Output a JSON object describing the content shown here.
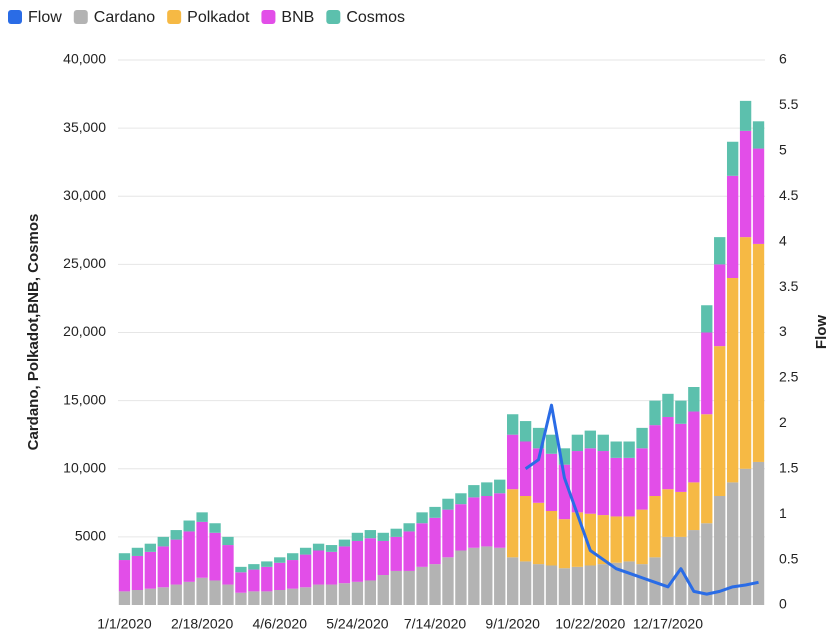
{
  "chart_data": {
    "type": "bar",
    "stacked": true,
    "categories": [
      "1/1/2020",
      null,
      null,
      null,
      null,
      null,
      "2/18/2020",
      null,
      null,
      null,
      null,
      null,
      "4/6/2020",
      null,
      null,
      null,
      null,
      null,
      "5/24/2020",
      null,
      null,
      null,
      null,
      null,
      "7/14/2020",
      null,
      null,
      null,
      null,
      null,
      "9/1/2020",
      null,
      null,
      null,
      null,
      null,
      "10/22/2020",
      null,
      null,
      null,
      null,
      null,
      "12/17/2020",
      null,
      null,
      null,
      null,
      null,
      null,
      null
    ],
    "series": [
      {
        "name": "Flow",
        "color": "#2a6ce6",
        "type": "line",
        "axis": "y2",
        "values": [
          null,
          null,
          null,
          null,
          null,
          null,
          null,
          null,
          null,
          null,
          null,
          null,
          null,
          null,
          null,
          null,
          null,
          null,
          null,
          null,
          null,
          null,
          null,
          null,
          null,
          null,
          null,
          null,
          null,
          null,
          null,
          1.5,
          1.6,
          2.2,
          1.4,
          1.0,
          0.6,
          0.5,
          0.4,
          0.35,
          0.3,
          0.25,
          0.2,
          0.4,
          0.15,
          0.12,
          0.15,
          0.2,
          0.22,
          0.25
        ]
      },
      {
        "name": "Cardano",
        "color": "#b3b3b3",
        "values": [
          1000,
          1100,
          1200,
          1300,
          1500,
          1700,
          2000,
          1800,
          1500,
          900,
          1000,
          1000,
          1100,
          1200,
          1300,
          1500,
          1500,
          1600,
          1700,
          1800,
          2200,
          2500,
          2500,
          2800,
          3000,
          3500,
          4000,
          4200,
          4300,
          4200,
          3500,
          3200,
          3000,
          2900,
          2700,
          2800,
          2900,
          3000,
          3100,
          3200,
          3000,
          3500,
          5000,
          5000,
          5500,
          6000,
          8000,
          9000,
          10000,
          10500
        ]
      },
      {
        "name": "Polkadot",
        "color": "#f6b944",
        "values": [
          0,
          0,
          0,
          0,
          0,
          0,
          0,
          0,
          0,
          0,
          0,
          0,
          0,
          0,
          0,
          0,
          0,
          0,
          0,
          0,
          0,
          0,
          0,
          0,
          0,
          0,
          0,
          0,
          0,
          0,
          5000,
          4800,
          4500,
          4000,
          3600,
          4000,
          3800,
          3600,
          3400,
          3300,
          4000,
          4500,
          3500,
          3300,
          3500,
          8000,
          11000,
          15000,
          17000,
          16000
        ]
      },
      {
        "name": "BNB",
        "color": "#e24ee8",
        "values": [
          2300,
          2500,
          2700,
          3000,
          3300,
          3700,
          4100,
          3500,
          2900,
          1500,
          1600,
          1800,
          2000,
          2100,
          2400,
          2500,
          2400,
          2700,
          3000,
          3100,
          2500,
          2500,
          2900,
          3200,
          3400,
          3500,
          3400,
          3700,
          3700,
          4000,
          4000,
          4000,
          4000,
          4200,
          4000,
          4500,
          4800,
          4700,
          4300,
          4300,
          4500,
          5200,
          5300,
          5000,
          5200,
          6000,
          6000,
          7500,
          7800,
          7000
        ]
      },
      {
        "name": "Cosmos",
        "color": "#5cc0ad",
        "values": [
          500,
          600,
          600,
          700,
          700,
          800,
          700,
          700,
          600,
          400,
          400,
          400,
          400,
          500,
          500,
          500,
          500,
          500,
          600,
          600,
          600,
          600,
          600,
          800,
          800,
          800,
          800,
          900,
          1000,
          1000,
          1500,
          1500,
          1500,
          1400,
          1200,
          1200,
          1300,
          1200,
          1200,
          1200,
          1500,
          1800,
          1700,
          1700,
          1800,
          2000,
          2000,
          2500,
          2200,
          2000
        ]
      }
    ],
    "ylabel": "Cardano, Polkadot,BNB, Cosmos",
    "y2label": "Flow",
    "ylim": [
      0,
      40000
    ],
    "yticks": [
      5000,
      {
        "value": 10000,
        "label": "10,000"
      },
      {
        "value": 15000,
        "label": "15,000"
      },
      {
        "value": 20000,
        "label": "20,000"
      },
      {
        "value": 25000,
        "label": "25,000"
      },
      {
        "value": 30000,
        "label": "30,000"
      },
      {
        "value": 35000,
        "label": "35,000"
      },
      {
        "value": 40000,
        "label": "40,000"
      }
    ],
    "y2lim": [
      0,
      6
    ],
    "y2ticks": [
      0,
      0.5,
      1,
      1.5,
      2,
      2.5,
      3,
      3.5,
      4,
      4.5,
      5,
      5.5,
      6
    ],
    "grid": true,
    "legend": "top-left"
  }
}
